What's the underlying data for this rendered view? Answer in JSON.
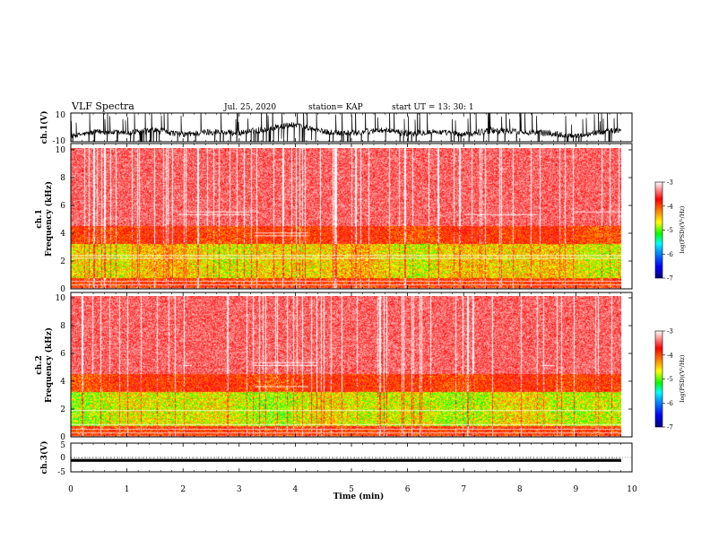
{
  "header": {
    "title": "VLF Spectra",
    "date": "Jul. 25, 2020",
    "station": "station= KAP",
    "start": "start UT =  13: 30: 1"
  },
  "colors": {
    "colormap": [
      "#000080",
      "#0000ff",
      "#00a0ff",
      "#00ffff",
      "#00ff00",
      "#ffff00",
      "#ff8000",
      "#ff0000",
      "#ffffff"
    ],
    "trace": "#000000"
  },
  "chart_data": [
    {
      "type": "line",
      "panel": "ch1-waveform",
      "ylabel": "ch.1(V)",
      "ylim": [
        -10,
        10
      ],
      "y_ticks": [
        "10",
        "-10"
      ],
      "x_range_min": [
        0,
        10
      ],
      "description_series": "noisy waveform filling roughly -10..10 V with visible low-frequency wander",
      "envelope": {
        "x_min": [
          0,
          0.5,
          1,
          1.5,
          2,
          2.5,
          3,
          3.5,
          4,
          4.5,
          5,
          5.5,
          6,
          6.5,
          7,
          7.5,
          8,
          8.5,
          9,
          9.5,
          9.8
        ],
        "center_V": [
          -6,
          -3,
          -4,
          -2,
          -5,
          -3,
          -4,
          -1,
          2,
          -3,
          -4,
          -2,
          -4,
          -3,
          -5,
          -2,
          -3,
          -4,
          -6,
          -3,
          -2
        ],
        "amplitude_V": [
          4,
          5,
          5,
          6,
          5,
          6,
          5,
          6,
          5,
          5,
          6,
          5,
          6,
          5,
          5,
          6,
          5,
          6,
          4,
          5,
          5
        ]
      }
    },
    {
      "type": "heatmap",
      "panel": "ch1-spectrogram",
      "ylabel": "ch.1\nFrequency (kHz)",
      "xlim": [
        0,
        10
      ],
      "ylim": [
        0,
        10
      ],
      "y_ticks": [
        "0",
        "2",
        "4",
        "6",
        "8",
        "10"
      ],
      "colorbar": {
        "label": "log(PSD)(V²/Hz)",
        "range": [
          -7,
          -3
        ],
        "ticks": [
          "-3",
          "-4",
          "-5",
          "-6",
          "-7"
        ]
      }
    },
    {
      "type": "heatmap",
      "panel": "ch2-spectrogram",
      "ylabel": "ch.2\nFrequency (kHz)",
      "xlim": [
        0,
        10
      ],
      "ylim": [
        0,
        10
      ],
      "y_ticks": [
        "0",
        "2",
        "4",
        "6",
        "8",
        "10"
      ],
      "colorbar": {
        "label": "log(PSD)(V²/Hz)",
        "range": [
          -7,
          -3
        ],
        "ticks": [
          "-3",
          "-4",
          "-5",
          "-6",
          "-7"
        ]
      }
    },
    {
      "type": "line",
      "panel": "ch3-waveform",
      "ylabel": "ch.3(V)",
      "ylim": [
        -5,
        5
      ],
      "y_ticks": [
        "5",
        "0",
        "-5"
      ],
      "description_series": "flat band near -1 V",
      "level_V": -1,
      "band_halfwidth_V": 0.5
    }
  ],
  "xaxis": {
    "label": "Time (min)",
    "ticks": [
      "0",
      "1",
      "2",
      "3",
      "4",
      "5",
      "6",
      "7",
      "8",
      "9",
      "10"
    ]
  },
  "labels": {
    "ch1_v": "ch.1(V)",
    "ch1_freq_a": "ch.1",
    "ch1_freq_b": "Frequency (kHz)",
    "ch2_freq_a": "ch.2",
    "ch2_freq_b": "Frequency (kHz)",
    "ch3_v": "ch.3(V)",
    "cb_label": "log(PSD)(V²/Hz)"
  }
}
